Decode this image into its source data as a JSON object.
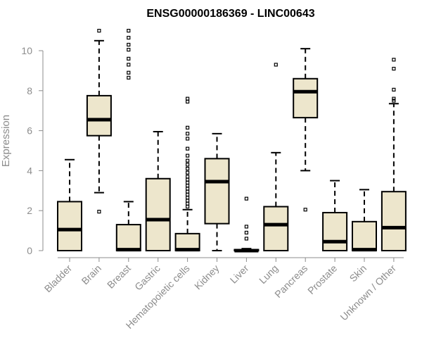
{
  "chart_data": {
    "type": "box",
    "title": "ENSG00000186369 - LINC00643",
    "xlabel": "",
    "ylabel": "Expression",
    "ylim": [
      0,
      11
    ],
    "yticks": [
      0,
      2,
      4,
      6,
      8,
      10
    ],
    "grid": false,
    "box_color": "#ede6cc",
    "categories": [
      "Bladder",
      "Brain",
      "Breast",
      "Gastric",
      "Hematopoietic cells",
      "Kidney",
      "Liver",
      "Lung",
      "Pancreas",
      "Prostate",
      "Skin",
      "Unknown / Other"
    ],
    "boxes": [
      {
        "q1": 0.0,
        "median": 1.05,
        "q3": 2.45,
        "whisker_low": 0.0,
        "whisker_high": 4.55,
        "outliers": []
      },
      {
        "q1": 5.75,
        "median": 6.55,
        "q3": 7.75,
        "whisker_low": 2.9,
        "whisker_high": 10.5,
        "outliers": [
          1.95,
          11.0
        ]
      },
      {
        "q1": 0.0,
        "median": 0.05,
        "q3": 1.3,
        "whisker_low": 0.0,
        "whisker_high": 2.45,
        "outliers": [
          8.65,
          8.9,
          9.3,
          9.6,
          10.05,
          10.3,
          10.65,
          11.0
        ]
      },
      {
        "q1": 0.0,
        "median": 1.55,
        "q3": 3.6,
        "whisker_low": 0.0,
        "whisker_high": 5.95,
        "outliers": []
      },
      {
        "q1": 0.0,
        "median": 0.05,
        "q3": 0.85,
        "whisker_low": 0.0,
        "whisker_high": 2.05,
        "outliers": [
          2.2,
          2.35,
          2.5,
          2.65,
          2.8,
          2.95,
          3.1,
          3.25,
          3.4,
          3.55,
          3.7,
          3.9,
          4.1,
          4.3,
          4.5,
          4.75,
          5.1,
          5.6,
          5.85,
          6.15,
          7.45,
          7.6
        ]
      },
      {
        "q1": 1.35,
        "median": 3.45,
        "q3": 4.6,
        "whisker_low": 0.0,
        "whisker_high": 5.85,
        "outliers": []
      },
      {
        "q1": 0.0,
        "median": 0.0,
        "q3": 0.05,
        "whisker_low": 0.0,
        "whisker_high": 0.1,
        "outliers": [
          0.6,
          0.9,
          1.2,
          2.6
        ]
      },
      {
        "q1": 0.0,
        "median": 1.3,
        "q3": 2.2,
        "whisker_low": 0.0,
        "whisker_high": 4.9,
        "outliers": [
          9.3
        ]
      },
      {
        "q1": 6.65,
        "median": 7.95,
        "q3": 8.6,
        "whisker_low": 4.0,
        "whisker_high": 10.1,
        "outliers": [
          2.05
        ]
      },
      {
        "q1": 0.0,
        "median": 0.45,
        "q3": 1.9,
        "whisker_low": 0.0,
        "whisker_high": 3.5,
        "outliers": []
      },
      {
        "q1": 0.0,
        "median": 0.05,
        "q3": 1.45,
        "whisker_low": 0.0,
        "whisker_high": 3.05,
        "outliers": []
      },
      {
        "q1": 0.0,
        "median": 1.15,
        "q3": 2.95,
        "whisker_low": 0.0,
        "whisker_high": 7.35,
        "outliers": [
          7.5,
          7.6,
          8.05,
          9.1,
          9.55
        ]
      }
    ]
  }
}
